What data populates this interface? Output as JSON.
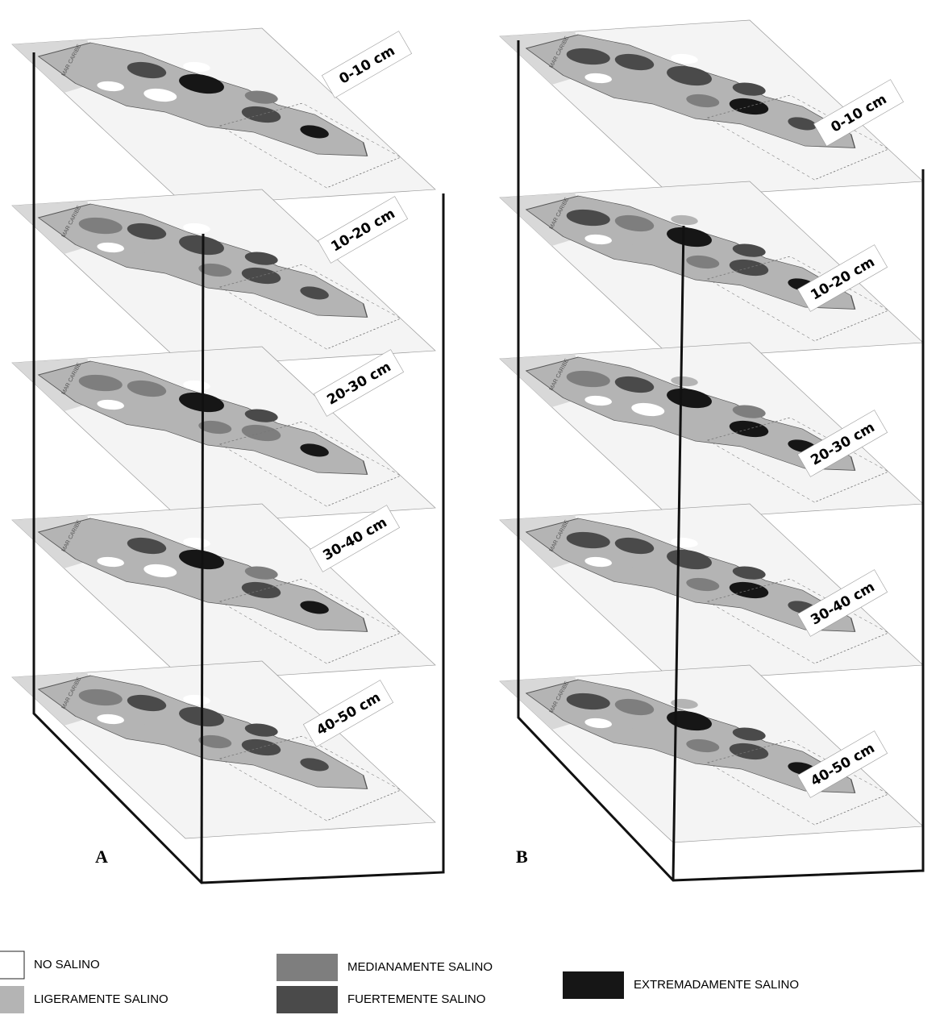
{
  "panels": [
    {
      "label": "A",
      "layers": [
        "0-10 cm",
        "10-20 cm",
        "20-30 cm",
        "30-40 cm",
        "40-50 cm"
      ]
    },
    {
      "label": "B",
      "layers": [
        "0-10 cm",
        "10-20 cm",
        "20-30 cm",
        "30-40 cm",
        "40-50 cm"
      ]
    }
  ],
  "map_label": "MAR CARIBE",
  "legend": [
    {
      "name": "NO SALINO",
      "color": "#ffffff"
    },
    {
      "name": "LIGERAMENTE SALINO",
      "color": "#b4b4b4"
    },
    {
      "name": "MEDIANAMENTE SALINO",
      "color": "#7e7e7e"
    },
    {
      "name": "FUERTEMENTE SALINO",
      "color": "#4a4a4a"
    },
    {
      "name": "EXTREMADAMENTE SALINO",
      "color": "#161616"
    }
  ]
}
